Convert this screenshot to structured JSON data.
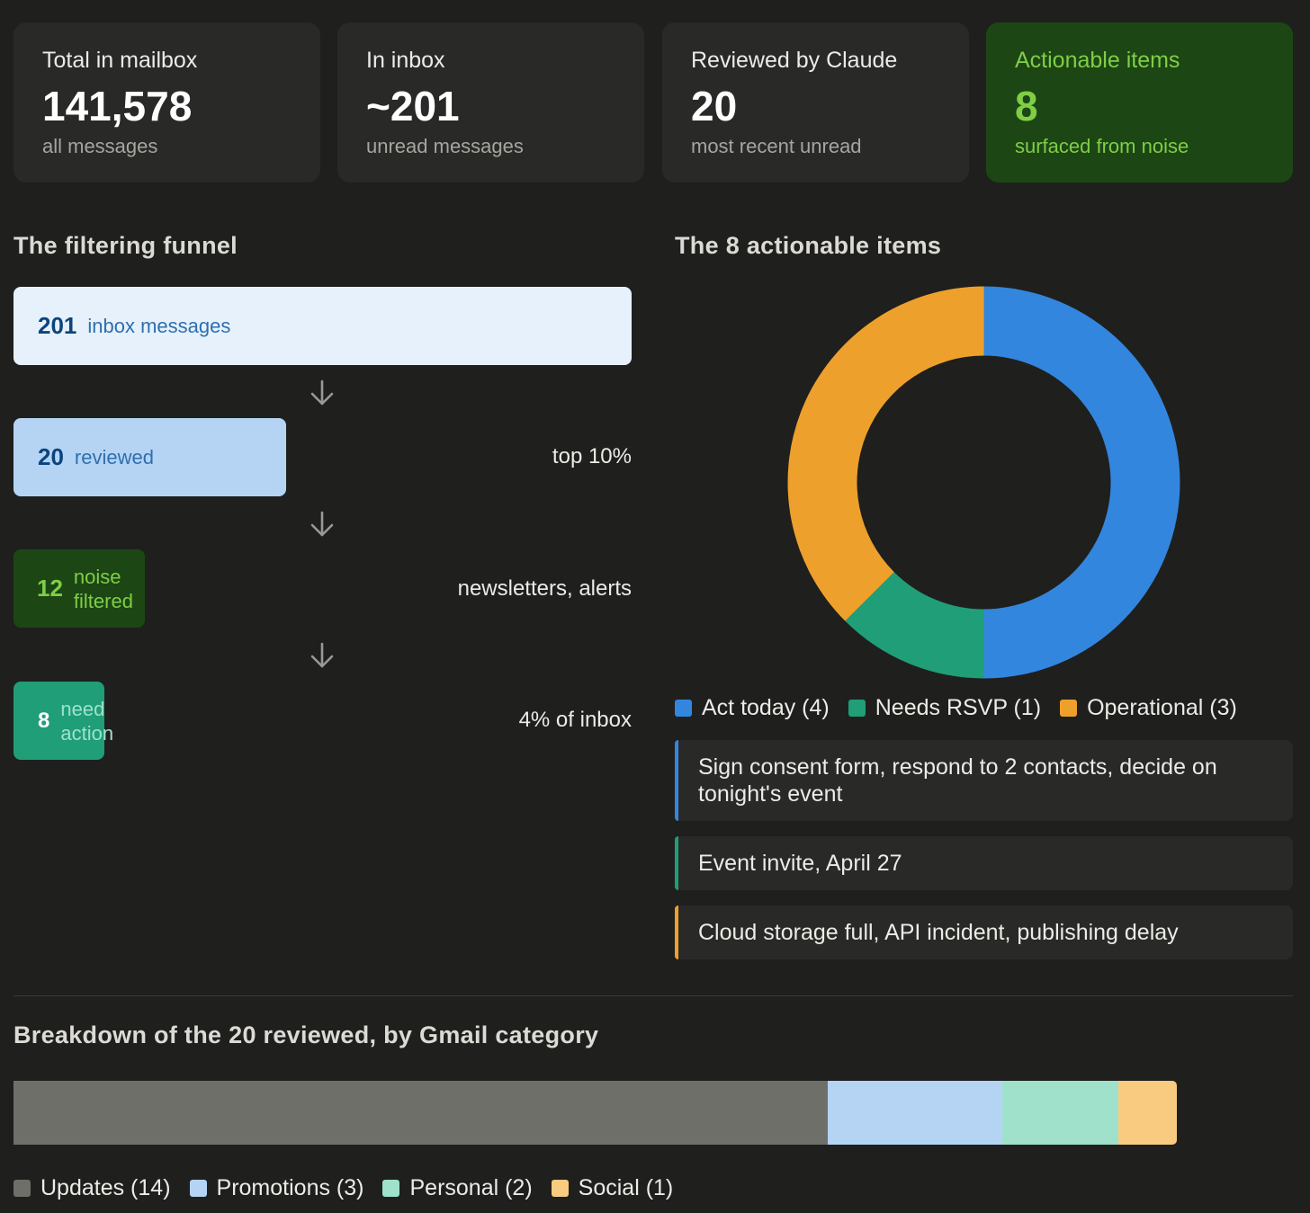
{
  "stats": [
    {
      "label": "Total in mailbox",
      "value": "141,578",
      "sub": "all messages"
    },
    {
      "label": "In inbox",
      "value": "~201",
      "sub": "unread messages"
    },
    {
      "label": "Reviewed by Claude",
      "value": "20",
      "sub": "most recent unread"
    },
    {
      "label": "Actionable items",
      "value": "8",
      "sub": "surfaced from noise"
    }
  ],
  "funnel": {
    "title": "The filtering funnel",
    "steps": [
      {
        "count": "201",
        "label": "inbox messages",
        "note": "",
        "value": 201
      },
      {
        "count": "20",
        "label": "reviewed",
        "note": "top 10%",
        "value": 20
      },
      {
        "count": "12",
        "label": "noise filtered",
        "note": "newsletters, alerts",
        "value": 12
      },
      {
        "count": "8",
        "label": "need action",
        "note": "4% of inbox",
        "value": 8
      }
    ]
  },
  "actionable": {
    "title": "The 8 actionable items",
    "items": [
      {
        "label": "Sign consent form, respond to 2 contacts, decide on tonight's event"
      },
      {
        "label": "Event invite, April 27"
      },
      {
        "label": "Cloud storage full, API incident, publishing delay"
      }
    ]
  },
  "breakdown": {
    "title": "Breakdown of the 20 reviewed, by Gmail category"
  },
  "colors": {
    "act_today": "#3386dd",
    "needs_rsvp": "#1f9e77",
    "operational": "#eea02c",
    "updates": "#6f6f6a",
    "promotions": "#b5d4f4",
    "personal": "#9fe1cb",
    "social": "#f9cb80"
  },
  "chart_data": [
    {
      "type": "pie",
      "title": "The 8 actionable items",
      "categories": [
        "Act today",
        "Needs RSVP",
        "Operational"
      ],
      "values": [
        4,
        1,
        3
      ],
      "legend_labels": [
        "Act today (4)",
        "Needs RSVP (1)",
        "Operational (3)"
      ],
      "colors": [
        "#3386dd",
        "#1f9e77",
        "#eea02c"
      ],
      "donut": true
    },
    {
      "type": "bar",
      "stacked": true,
      "orientation": "horizontal",
      "title": "Breakdown of the 20 reviewed, by Gmail category",
      "categories": [
        "Updates",
        "Promotions",
        "Personal",
        "Social"
      ],
      "values": [
        14,
        3,
        2,
        1
      ],
      "legend_labels": [
        "Updates (14)",
        "Promotions (3)",
        "Personal (2)",
        "Social (1)"
      ],
      "colors": [
        "#6f6f6a",
        "#b5d4f4",
        "#9fe1cb",
        "#f9cb80"
      ]
    }
  ]
}
